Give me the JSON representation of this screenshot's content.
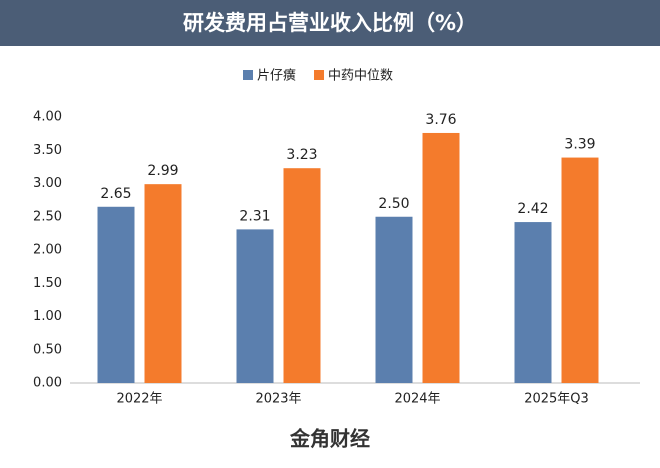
{
  "chart_data": {
    "type": "bar",
    "title": "研发费用占营业收入比例（%）",
    "categories": [
      "2022年",
      "2023年",
      "2024年",
      "2025年Q3"
    ],
    "series": [
      {
        "name": "片仔癀",
        "color": "#5b7fae",
        "values": [
          2.65,
          2.31,
          2.5,
          2.42
        ],
        "value_labels": [
          "2.65",
          "2.31",
          "2.50",
          "2.42"
        ]
      },
      {
        "name": "中药中位数",
        "color": "#f47b2c",
        "values": [
          2.99,
          3.23,
          3.76,
          3.39
        ],
        "value_labels": [
          "2.99",
          "3.23",
          "3.76",
          "3.39"
        ]
      }
    ],
    "ylim": [
      0,
      4
    ],
    "yticks": [
      {
        "value": 0,
        "label": "0.00"
      },
      {
        "value": 0.5,
        "label": "0.50"
      },
      {
        "value": 1,
        "label": "1.00"
      },
      {
        "value": 1.5,
        "label": "1.50"
      },
      {
        "value": 2,
        "label": "2.00"
      },
      {
        "value": 2.5,
        "label": "2.50"
      },
      {
        "value": 3,
        "label": "3.00"
      },
      {
        "value": 3.5,
        "label": "3.50"
      },
      {
        "value": 4,
        "label": "4.00"
      }
    ],
    "grid": false,
    "legend": "top",
    "footer": "金角财经"
  }
}
